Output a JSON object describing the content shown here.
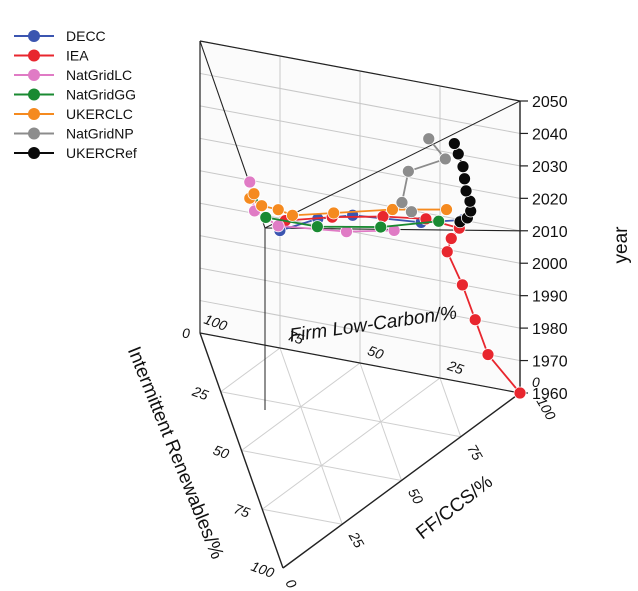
{
  "chart_data": {
    "type": "scatter",
    "subtype": "3d-ternary-time",
    "axes": {
      "firm": {
        "label": "Firm Low-Carbon/%",
        "ticks": [
          "0",
          "25",
          "50",
          "75",
          "100"
        ]
      },
      "ren": {
        "label": "Intermittent Renewables/%",
        "ticks": [
          "0",
          "25",
          "50",
          "75",
          "100"
        ]
      },
      "ff": {
        "label": "FF/CCS/%",
        "ticks": [
          "0",
          "25",
          "50",
          "75",
          "100"
        ]
      },
      "year": {
        "label": "year",
        "range": [
          1960,
          2050
        ],
        "ticks": [
          "1960",
          "1970",
          "1980",
          "1990",
          "2000",
          "2010",
          "2020",
          "2030",
          "2040",
          "2050"
        ]
      }
    },
    "legend_position": "top-left",
    "series": [
      {
        "name": "DECC",
        "color": "#3b55b0",
        "points": [
          {
            "year": 2010,
            "firm": 18,
            "ren": 0,
            "ff": 82
          },
          {
            "year": 2015,
            "firm": 22,
            "ren": 12,
            "ff": 66
          },
          {
            "year": 2020,
            "firm": 36,
            "ren": 22,
            "ff": 42
          },
          {
            "year": 2025,
            "firm": 38,
            "ren": 34,
            "ff": 28
          },
          {
            "year": 2030,
            "firm": 38,
            "ren": 50,
            "ff": 12
          }
        ]
      },
      {
        "name": "IEA",
        "color": "#e8262e",
        "points": [
          {
            "year": 1960,
            "firm": 0,
            "ren": 0,
            "ff": 100
          },
          {
            "year": 1970,
            "firm": 10,
            "ren": 0,
            "ff": 90
          },
          {
            "year": 1980,
            "firm": 14,
            "ren": 0,
            "ff": 86
          },
          {
            "year": 1990,
            "firm": 18,
            "ren": 0,
            "ff": 82
          },
          {
            "year": 2000,
            "firm": 22,
            "ren": 1,
            "ff": 77
          },
          {
            "year": 2005,
            "firm": 20,
            "ren": 2,
            "ff": 78
          },
          {
            "year": 2010,
            "firm": 16,
            "ren": 4,
            "ff": 80
          },
          {
            "year": 2015,
            "firm": 22,
            "ren": 10,
            "ff": 68
          },
          {
            "year": 2020,
            "firm": 28,
            "ren": 20,
            "ff": 52
          },
          {
            "year": 2025,
            "firm": 35,
            "ren": 32,
            "ff": 33
          },
          {
            "year": 2030,
            "firm": 40,
            "ren": 45,
            "ff": 15
          }
        ]
      },
      {
        "name": "NatGridLC",
        "color": "#e07bc5",
        "points": [
          {
            "year": 2015,
            "firm": 26,
            "ren": 18,
            "ff": 56
          },
          {
            "year": 2020,
            "firm": 32,
            "ren": 30,
            "ff": 38
          },
          {
            "year": 2030,
            "firm": 40,
            "ren": 48,
            "ff": 12
          },
          {
            "year": 2040,
            "firm": 40,
            "ren": 58,
            "ff": 2
          },
          {
            "year": 2050,
            "firm": 40,
            "ren": 60,
            "ff": 0
          }
        ]
      },
      {
        "name": "NatGridGG",
        "color": "#1a8a32",
        "points": [
          {
            "year": 2015,
            "firm": 18,
            "ren": 10,
            "ff": 72
          },
          {
            "year": 2020,
            "firm": 25,
            "ren": 25,
            "ff": 50
          },
          {
            "year": 2030,
            "firm": 30,
            "ren": 45,
            "ff": 25
          },
          {
            "year": 2040,
            "firm": 35,
            "ren": 60,
            "ff": 5
          },
          {
            "year": 2050,
            "firm": 35,
            "ren": 65,
            "ff": 0
          }
        ]
      },
      {
        "name": "UKERCLC",
        "color": "#f58a1f",
        "points": [
          {
            "year": 2015,
            "firm": 20,
            "ren": 4,
            "ff": 76
          },
          {
            "year": 2020,
            "firm": 28,
            "ren": 16,
            "ff": 56
          },
          {
            "year": 2025,
            "firm": 36,
            "ren": 30,
            "ff": 34
          },
          {
            "year": 2030,
            "firm": 40,
            "ren": 42,
            "ff": 18
          },
          {
            "year": 2035,
            "firm": 40,
            "ren": 48,
            "ff": 12
          },
          {
            "year": 2040,
            "firm": 40,
            "ren": 55,
            "ff": 5
          },
          {
            "year": 2045,
            "firm": 40,
            "ren": 60,
            "ff": 0
          },
          {
            "year": 2050,
            "firm": 35,
            "ren": 65,
            "ff": 0
          }
        ]
      },
      {
        "name": "NatGridNP",
        "color": "#8c8c8c",
        "points": [
          {
            "year": 2015,
            "firm": 28,
            "ren": 8,
            "ff": 64
          },
          {
            "year": 2020,
            "firm": 28,
            "ren": 12,
            "ff": 60
          },
          {
            "year": 2030,
            "firm": 26,
            "ren": 12,
            "ff": 62
          },
          {
            "year": 2040,
            "firm": 10,
            "ren": 18,
            "ff": 72
          },
          {
            "year": 2050,
            "firm": 10,
            "ren": 25,
            "ff": 65
          }
        ]
      },
      {
        "name": "UKERCRef",
        "color": "#0a0a0a",
        "points": [
          {
            "year": 2010,
            "firm": 18,
            "ren": 1,
            "ff": 81
          },
          {
            "year": 2015,
            "firm": 12,
            "ren": 6,
            "ff": 82
          },
          {
            "year": 2020,
            "firm": 8,
            "ren": 10,
            "ff": 82
          },
          {
            "year": 2025,
            "firm": 6,
            "ren": 13,
            "ff": 81
          },
          {
            "year": 2030,
            "firm": 5,
            "ren": 16,
            "ff": 79
          },
          {
            "year": 2035,
            "firm": 4,
            "ren": 18,
            "ff": 78
          },
          {
            "year": 2040,
            "firm": 3,
            "ren": 20,
            "ff": 77
          },
          {
            "year": 2045,
            "firm": 3,
            "ren": 22,
            "ff": 75
          },
          {
            "year": 2050,
            "firm": 2,
            "ren": 25,
            "ff": 73
          }
        ]
      }
    ]
  }
}
